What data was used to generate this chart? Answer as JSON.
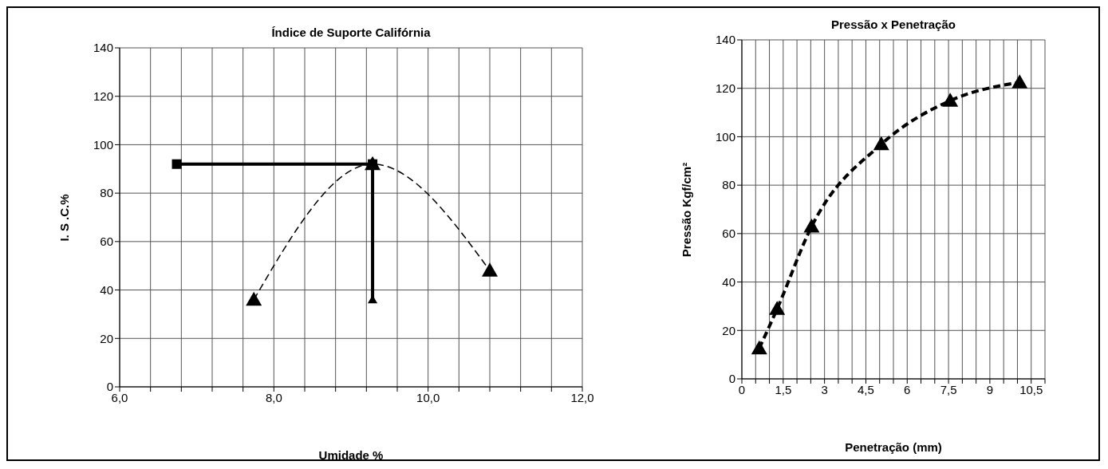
{
  "chart_data": [
    {
      "type": "line",
      "title": "Índice de Suporte Califórnia",
      "xlabel": "Umidade %",
      "ylabel": "I. S .C.%",
      "xlim": [
        6,
        12
      ],
      "xticks": [
        {
          "value": 6,
          "label": "6,0"
        },
        {
          "value": 6.4,
          "label": null
        },
        {
          "value": 6.8,
          "label": null
        },
        {
          "value": 7.2,
          "label": null
        },
        {
          "value": 7.6,
          "label": null
        },
        {
          "value": 8,
          "label": "8,0"
        },
        {
          "value": 8.4,
          "label": null
        },
        {
          "value": 8.8,
          "label": null
        },
        {
          "value": 9.2,
          "label": null
        },
        {
          "value": 9.6,
          "label": null
        },
        {
          "value": 10,
          "label": "10,0"
        },
        {
          "value": 10.4,
          "label": null
        },
        {
          "value": 10.8,
          "label": null
        },
        {
          "value": 11.2,
          "label": null
        },
        {
          "value": 11.6,
          "label": null
        },
        {
          "value": 12,
          "label": "12,0"
        }
      ],
      "ylim": [
        0,
        140
      ],
      "yticks": [
        0,
        20,
        40,
        60,
        80,
        100,
        120,
        140
      ],
      "grid": true,
      "series": [
        {
          "color": "#000000",
          "x": [
            7.74,
            9.28,
            10.8
          ],
          "values": [
            36,
            92,
            48
          ],
          "marker": "triangle",
          "line_style": "dashed"
        },
        {
          "color": "#000000",
          "x": [
            6.74,
            9.28
          ],
          "values": [
            92,
            92
          ],
          "marker": "square",
          "line_style": "solid"
        },
        {
          "color": "#000000",
          "x": [
            9.28,
            9.28
          ],
          "values": [
            92,
            36
          ],
          "marker": "triangle",
          "line_style": "solid"
        }
      ]
    },
    {
      "type": "line",
      "title": "Pressão  x  Penetração",
      "xlabel": "Penetração (mm)",
      "ylabel": "Pressão Kgf/cm²",
      "xlim": [
        0,
        11
      ],
      "xticks": [
        0,
        {
          "value": 0.5,
          "label": null
        },
        {
          "value": 1,
          "label": null
        },
        {
          "value": 1.5,
          "label": "1,5"
        },
        {
          "value": 2,
          "label": null
        },
        {
          "value": 2.5,
          "label": null
        },
        3,
        {
          "value": 3.5,
          "label": null
        },
        {
          "value": 4,
          "label": null
        },
        {
          "value": 4.5,
          "label": "4,5"
        },
        {
          "value": 5,
          "label": null
        },
        {
          "value": 5.5,
          "label": null
        },
        6,
        {
          "value": 6.5,
          "label": null
        },
        {
          "value": 7,
          "label": null
        },
        {
          "value": 7.5,
          "label": "7,5"
        },
        {
          "value": 8,
          "label": null
        },
        {
          "value": 8.5,
          "label": null
        },
        9,
        {
          "value": 9.5,
          "label": null
        },
        {
          "value": 10,
          "label": null
        },
        {
          "value": 10.5,
          "label": "10,5"
        },
        {
          "value": 11,
          "label": null
        }
      ],
      "ylim": [
        0,
        140
      ],
      "yticks": [
        0,
        20,
        40,
        60,
        80,
        100,
        120,
        140
      ],
      "grid": true,
      "series": [
        {
          "color": "#000000",
          "x": [
            0.63,
            1.28,
            2.53,
            5.06,
            7.56,
            10.08
          ],
          "values": [
            12.6,
            28.9,
            62.9,
            96.9,
            114.9,
            122.5
          ],
          "marker": "triangle",
          "line_style": "dashed"
        }
      ]
    }
  ]
}
